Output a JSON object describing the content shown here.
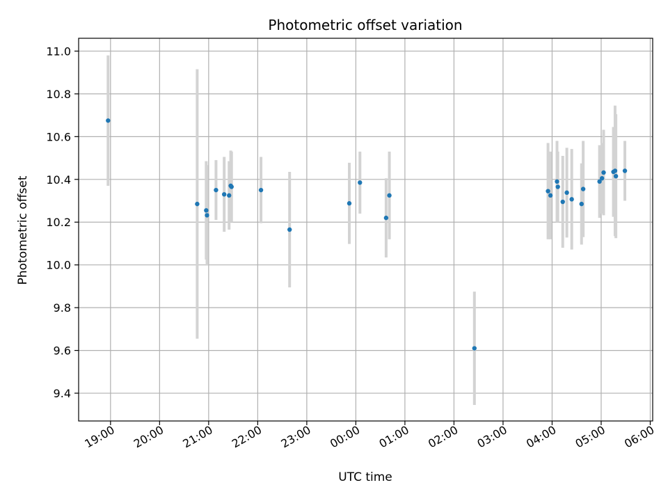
{
  "chart_data": {
    "type": "scatter",
    "title": "Photometric offset variation",
    "xlabel": "UTC time",
    "ylabel": "Photometric offset",
    "grid": true,
    "x_tick_labels": [
      "19:00",
      "20:00",
      "21:00",
      "22:00",
      "23:00",
      "00:00",
      "01:00",
      "02:00",
      "03:00",
      "04:00",
      "05:00",
      "06:00"
    ],
    "y_tick_labels": [
      "9.4",
      "9.6",
      "9.8",
      "10.0",
      "10.2",
      "10.4",
      "10.6",
      "10.8",
      "11.0"
    ],
    "colors": {
      "points": "#1f77b4",
      "errorbars": "#d3d3d3",
      "grid": "#b0b0b0",
      "axes": "#000000"
    },
    "points": [
      {
        "x": "18:57",
        "y": 10.675,
        "err": 0.305
      },
      {
        "x": "20:46",
        "y": 10.285,
        "err": 0.63
      },
      {
        "x": "20:57",
        "y": 10.255,
        "err": 0.23
      },
      {
        "x": "20:58",
        "y": 10.232,
        "err": 0.235
      },
      {
        "x": "21:09",
        "y": 10.35,
        "err": 0.14
      },
      {
        "x": "21:19",
        "y": 10.33,
        "err": 0.175
      },
      {
        "x": "21:25",
        "y": 10.325,
        "err": 0.16
      },
      {
        "x": "21:27",
        "y": 10.37,
        "err": 0.165
      },
      {
        "x": "21:28",
        "y": 10.365,
        "err": 0.165
      },
      {
        "x": "22:04",
        "y": 10.35,
        "err": 0.155
      },
      {
        "x": "22:39",
        "y": 10.165,
        "err": 0.27
      },
      {
        "x": "23:52",
        "y": 10.288,
        "err": 0.19
      },
      {
        "x": "00:05",
        "y": 10.385,
        "err": 0.145
      },
      {
        "x": "00:37",
        "y": 10.22,
        "err": 0.185
      },
      {
        "x": "00:41",
        "y": 10.325,
        "err": 0.205
      },
      {
        "x": "02:25",
        "y": 9.61,
        "err": 0.265
      },
      {
        "x": "03:55",
        "y": 10.345,
        "err": 0.225
      },
      {
        "x": "03:58",
        "y": 10.325,
        "err": 0.205
      },
      {
        "x": "04:06",
        "y": 10.39,
        "err": 0.19
      },
      {
        "x": "04:07",
        "y": 10.365,
        "err": 0.165
      },
      {
        "x": "04:13",
        "y": 10.295,
        "err": 0.215
      },
      {
        "x": "04:18",
        "y": 10.338,
        "err": 0.21
      },
      {
        "x": "04:24",
        "y": 10.307,
        "err": 0.235
      },
      {
        "x": "04:36",
        "y": 10.285,
        "err": 0.19
      },
      {
        "x": "04:38",
        "y": 10.355,
        "err": 0.225
      },
      {
        "x": "04:58",
        "y": 10.39,
        "err": 0.17
      },
      {
        "x": "05:01",
        "y": 10.405,
        "err": 0.165
      },
      {
        "x": "05:03",
        "y": 10.432,
        "err": 0.2
      },
      {
        "x": "05:15",
        "y": 10.435,
        "err": 0.21
      },
      {
        "x": "05:17",
        "y": 10.44,
        "err": 0.305
      },
      {
        "x": "05:18",
        "y": 10.415,
        "err": 0.29
      },
      {
        "x": "05:29",
        "y": 10.44,
        "err": 0.14
      }
    ]
  }
}
